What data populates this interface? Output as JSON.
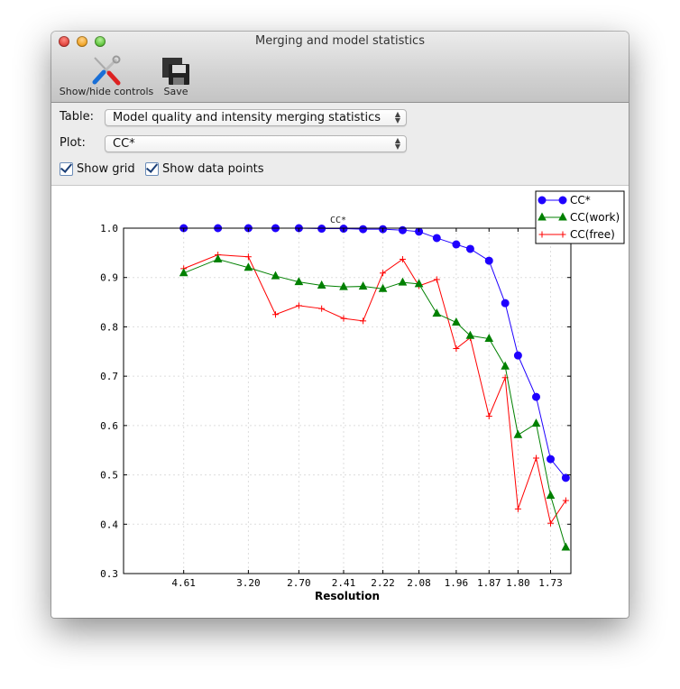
{
  "window": {
    "title": "Merging and model statistics"
  },
  "toolbar": {
    "show_hide_label": "Show/hide controls",
    "save_label": "Save",
    "show_hide_icon": "tools-icon",
    "save_icon": "floppy-disk-icon"
  },
  "controls": {
    "table_label": "Table:",
    "table_value": "Model quality and intensity merging statistics",
    "plot_label": "Plot:",
    "plot_value": "CC*",
    "show_grid_label": "Show grid",
    "show_grid": true,
    "show_points_label": "Show data points",
    "show_points": true
  },
  "chart_data": {
    "type": "line",
    "title": "CC*",
    "xlabel": "Resolution",
    "ylabel": "",
    "x_scale": "1/d^2",
    "x_resolution": [
      4.61,
      3.68,
      3.2,
      2.9,
      2.7,
      2.54,
      2.41,
      2.31,
      2.22,
      2.14,
      2.08,
      2.02,
      1.96,
      1.92,
      1.87,
      1.83,
      1.8,
      1.76,
      1.73,
      1.7
    ],
    "xtick_labels": [
      "4.61",
      "3.20",
      "2.70",
      "2.41",
      "2.22",
      "2.08",
      "1.96",
      "1.87",
      "1.80",
      "1.73"
    ],
    "yticks": [
      "1.0",
      "0.9",
      "0.8",
      "0.7",
      "0.6",
      "0.5",
      "0.4",
      "0.3"
    ],
    "ylim": [
      0.3,
      1.0
    ],
    "grid": true,
    "legend_position": "top-right",
    "series": [
      {
        "name": "CC*",
        "color": "#1f00ff",
        "marker": "circle",
        "values": [
          1.0,
          1.0,
          1.0,
          1.0,
          1.0,
          0.999,
          0.999,
          0.998,
          0.998,
          0.996,
          0.993,
          0.98,
          0.967,
          0.958,
          0.934,
          0.848,
          0.742,
          0.658,
          0.532,
          0.494
        ]
      },
      {
        "name": "CC(work)",
        "color": "#008000",
        "marker": "triangle",
        "values": [
          0.909,
          0.937,
          0.92,
          0.903,
          0.891,
          0.884,
          0.881,
          0.882,
          0.877,
          0.89,
          0.887,
          0.827,
          0.809,
          0.782,
          0.776,
          0.72,
          0.581,
          0.604,
          0.458,
          0.353
        ]
      },
      {
        "name": "CC(free)",
        "color": "#ff0000",
        "marker": "plus",
        "values": [
          0.918,
          0.946,
          0.942,
          0.825,
          0.843,
          0.837,
          0.817,
          0.812,
          0.909,
          0.937,
          0.883,
          0.896,
          0.756,
          0.778,
          0.619,
          0.697,
          0.431,
          0.534,
          0.402,
          0.448
        ]
      }
    ]
  }
}
